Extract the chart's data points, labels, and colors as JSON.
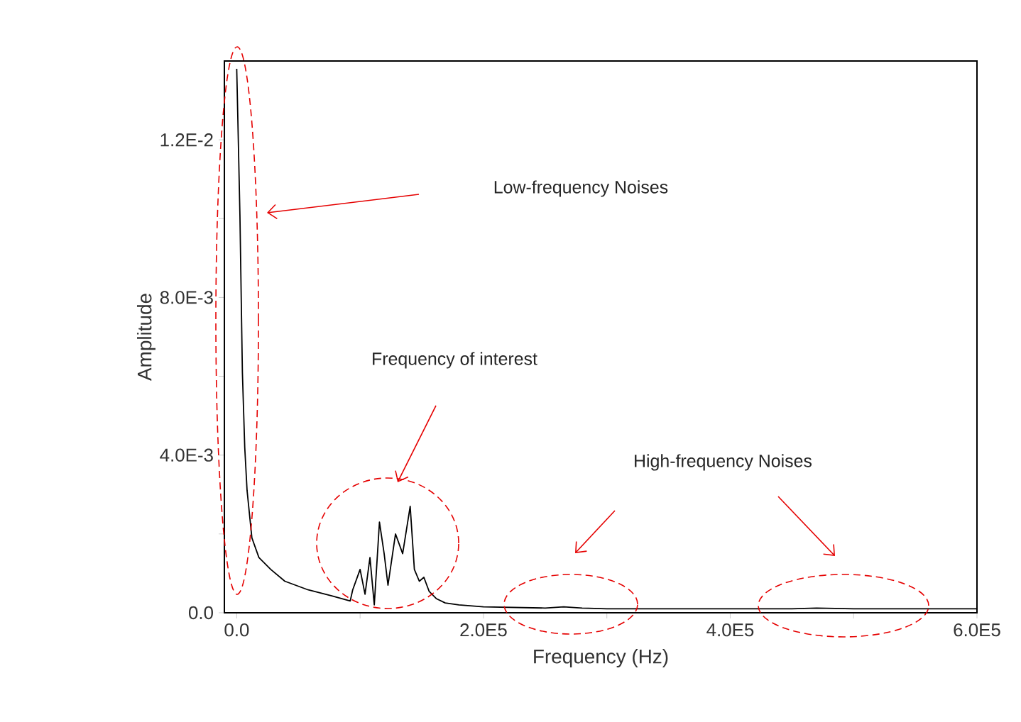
{
  "chart_data": {
    "type": "line",
    "xlabel": "Frequency (Hz)",
    "ylabel": "Amplitude",
    "annotations": [
      "Low-frequency Noises",
      "Frequency of interest",
      "High-frequency Noises"
    ],
    "xlim": [
      -10000,
      600000
    ],
    "ylim": [
      0,
      0.014
    ],
    "xticks": [
      {
        "value": 0,
        "label": "0.0"
      },
      {
        "value": 100000,
        "label": null
      },
      {
        "value": 200000,
        "label": "2.0E5"
      },
      {
        "value": 300000,
        "label": null
      },
      {
        "value": 400000,
        "label": "4.0E5"
      },
      {
        "value": 500000,
        "label": null
      },
      {
        "value": 600000,
        "label": "6.0E5"
      }
    ],
    "yticks": [
      {
        "value": 0,
        "label": "0.0"
      },
      {
        "value": 0.002,
        "label": null
      },
      {
        "value": 0.004,
        "label": "4.0E-3"
      },
      {
        "value": 0.006,
        "label": null
      },
      {
        "value": 0.008,
        "label": "8.0E-3"
      },
      {
        "value": 0.01,
        "label": null
      },
      {
        "value": 0.012,
        "label": "1.2E-2"
      }
    ],
    "grid": false,
    "marker": "none",
    "line_style": "solid",
    "series": [
      {
        "color": "#000000",
        "x": [
          0,
          800,
          2600,
          4600,
          6500,
          8400,
          12300,
          18000,
          27600,
          39000,
          58000,
          77000,
          92000,
          94000,
          100000,
          104000,
          108000,
          111500,
          115700,
          119500,
          122600,
          128700,
          134500,
          140600,
          144000,
          148000,
          151700,
          156000,
          161700,
          169000,
          180000,
          200000,
          250000,
          265000,
          280000,
          300000,
          350000,
          400000,
          450000,
          470000,
          500000,
          550000,
          600000
        ],
        "values": [
          0.0138,
          0.0127,
          0.0101,
          0.0061,
          0.0042,
          0.0031,
          0.0019,
          0.0014,
          0.0011,
          0.0008,
          0.00058,
          0.00043,
          0.0003,
          0.00058,
          0.0011,
          0.00047,
          0.0014,
          0.0002,
          0.0023,
          0.0015,
          0.0007,
          0.002,
          0.0015,
          0.0027,
          0.0011,
          0.0008,
          0.0009,
          0.00054,
          0.00036,
          0.00025,
          0.0002,
          0.00015,
          0.00012,
          0.00015,
          0.00012,
          0.0001,
          0.0001,
          0.0001,
          0.0001,
          0.00012,
          0.0001,
          0.0001,
          0.0001
        ]
      }
    ]
  }
}
